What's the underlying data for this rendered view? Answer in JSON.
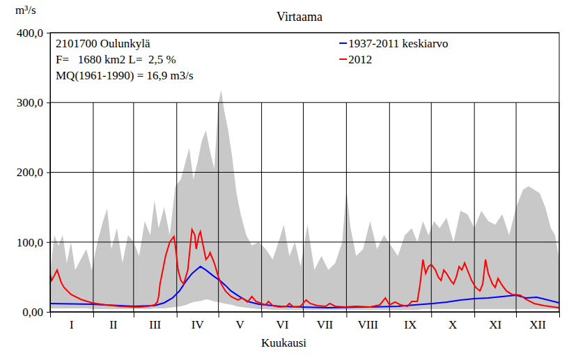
{
  "chart_data": {
    "type": "line",
    "title": "Virtaama",
    "y_label": "m³/s",
    "x_label": "Kuukausi",
    "annotations": [
      "2101700 Oulunkylä",
      "F=   1680 km2 L=  2,5 %",
      "MQ(1961-1990) = 16,9 m3/s"
    ],
    "categories": [
      "I",
      "II",
      "III",
      "IV",
      "V",
      "VI",
      "VII",
      "VIII",
      "IX",
      "X",
      "XI",
      "XII"
    ],
    "xlim": [
      0,
      366
    ],
    "xticks": [
      0,
      31,
      60,
      91,
      121,
      152,
      182,
      213,
      244,
      274,
      305,
      335,
      366
    ],
    "ylim": [
      0,
      400
    ],
    "yticks": [
      {
        "value": 0,
        "label": "0,00"
      },
      {
        "value": 100,
        "label": "100,0"
      },
      {
        "value": 200,
        "label": "200,0"
      },
      {
        "value": 300,
        "label": "300,0"
      },
      {
        "value": 400,
        "label": "400,0"
      }
    ],
    "tick_labels": "y",
    "grid": true,
    "legend": "top-right",
    "band": {
      "color": "#c8c8c8",
      "x": [
        0,
        3,
        6,
        9,
        12,
        15,
        18,
        22,
        26,
        30,
        34,
        38,
        41,
        44,
        48,
        52,
        56,
        60,
        64,
        68,
        72,
        75,
        78,
        82,
        86,
        90,
        94,
        98,
        100,
        103,
        106,
        109,
        112,
        115,
        118,
        121,
        123,
        125,
        128,
        131,
        134,
        137,
        141,
        145,
        150,
        155,
        160,
        165,
        168,
        172,
        176,
        180,
        185,
        190,
        195,
        200,
        205,
        210,
        213,
        216,
        220,
        225,
        230,
        235,
        240,
        245,
        250,
        255,
        260,
        264,
        268,
        272,
        276,
        280,
        285,
        290,
        295,
        300,
        305,
        310,
        315,
        320,
        325,
        330,
        335,
        340,
        344,
        348,
        352,
        356,
        360,
        363,
        366
      ],
      "high": [
        55,
        110,
        95,
        110,
        70,
        100,
        60,
        75,
        90,
        60,
        100,
        130,
        148,
        90,
        120,
        70,
        110,
        100,
        80,
        130,
        110,
        160,
        120,
        150,
        110,
        180,
        190,
        220,
        235,
        190,
        215,
        245,
        260,
        230,
        205,
        300,
        318,
        290,
        260,
        220,
        170,
        140,
        110,
        95,
        100,
        90,
        75,
        105,
        125,
        80,
        100,
        65,
        125,
        60,
        80,
        60,
        70,
        100,
        175,
        120,
        80,
        90,
        130,
        90,
        110,
        95,
        80,
        110,
        120,
        100,
        130,
        110,
        130,
        120,
        135,
        100,
        145,
        140,
        120,
        145,
        130,
        125,
        140,
        110,
        150,
        175,
        180,
        175,
        170,
        150,
        120,
        110,
        75
      ],
      "low": [
        5,
        5,
        5,
        5,
        5,
        5,
        5,
        5,
        5,
        4,
        4,
        4,
        4,
        4,
        4,
        4,
        4,
        4,
        4,
        4,
        4,
        5,
        5,
        5,
        6,
        7,
        8,
        10,
        12,
        14,
        15,
        16,
        18,
        17,
        15,
        14,
        13,
        12,
        11,
        10,
        8,
        7,
        6,
        5,
        4,
        4,
        3,
        3,
        3,
        3,
        3,
        3,
        3,
        3,
        3,
        3,
        3,
        3,
        3,
        3,
        3,
        3,
        3,
        3,
        3,
        3,
        3,
        3,
        3,
        3,
        4,
        4,
        4,
        4,
        4,
        4,
        4,
        4,
        4,
        4,
        4,
        4,
        4,
        4,
        4,
        4,
        4,
        4,
        4,
        4,
        4,
        4,
        4
      ]
    },
    "series": [
      {
        "name": "1937-2011 keskiarvo",
        "color": "#0000ff",
        "x": [
          0,
          30,
          50,
          60,
          75,
          82,
          88,
          93,
          98,
          102,
          105,
          108,
          112,
          117,
          122,
          126,
          130,
          136,
          142,
          150,
          165,
          180,
          200,
          230,
          250,
          262,
          275,
          285,
          295,
          305,
          315,
          325,
          335,
          342,
          350,
          358,
          366
        ],
        "values": [
          12,
          11,
          9,
          8,
          9,
          13,
          20,
          30,
          45,
          55,
          60,
          65,
          60,
          52,
          45,
          38,
          30,
          22,
          15,
          11,
          8,
          7,
          6,
          7,
          8,
          10,
          12,
          14,
          17,
          19,
          20,
          22,
          24,
          20,
          21,
          17,
          13
        ]
      },
      {
        "name": "2012",
        "color": "#ff0000",
        "x": [
          0,
          1,
          3,
          5,
          8,
          10,
          15,
          22,
          30,
          40,
          50,
          60,
          65,
          70,
          75,
          77,
          78,
          79,
          81,
          83,
          86,
          89,
          90,
          92,
          94,
          96,
          99,
          101,
          102,
          104,
          105,
          107,
          108,
          110,
          112,
          114,
          115,
          118,
          121,
          123,
          126,
          130,
          135,
          138,
          142,
          145,
          148,
          152,
          155,
          157,
          160,
          165,
          170,
          172,
          175,
          180,
          184,
          187,
          192,
          198,
          201,
          205,
          212,
          220,
          230,
          237,
          241,
          244,
          248,
          252,
          257,
          260,
          264,
          266,
          268,
          270,
          272,
          274,
          277,
          279,
          281,
          283,
          285,
          288,
          290,
          292,
          294,
          296,
          298,
          300,
          303,
          306,
          309,
          311,
          313,
          315,
          318,
          320,
          322,
          325,
          328,
          332,
          338,
          342,
          348,
          355,
          362,
          366
        ],
        "values": [
          55,
          45,
          52,
          60,
          42,
          35,
          25,
          18,
          13,
          10,
          8,
          7,
          7,
          8,
          10,
          14,
          22,
          40,
          60,
          80,
          100,
          108,
          95,
          60,
          45,
          40,
          60,
          100,
          118,
          110,
          90,
          110,
          115,
          95,
          75,
          80,
          85,
          70,
          50,
          40,
          30,
          22,
          17,
          20,
          14,
          22,
          15,
          12,
          10,
          15,
          9,
          7,
          8,
          12,
          7,
          8,
          17,
          12,
          9,
          8,
          12,
          8,
          7,
          8,
          7,
          10,
          20,
          10,
          14,
          10,
          8,
          15,
          15,
          40,
          75,
          55,
          65,
          68,
          60,
          50,
          45,
          60,
          55,
          45,
          40,
          50,
          65,
          60,
          70,
          60,
          45,
          35,
          30,
          40,
          75,
          55,
          40,
          35,
          48,
          38,
          30,
          25,
          24,
          18,
          12,
          9,
          7,
          6
        ]
      }
    ]
  }
}
